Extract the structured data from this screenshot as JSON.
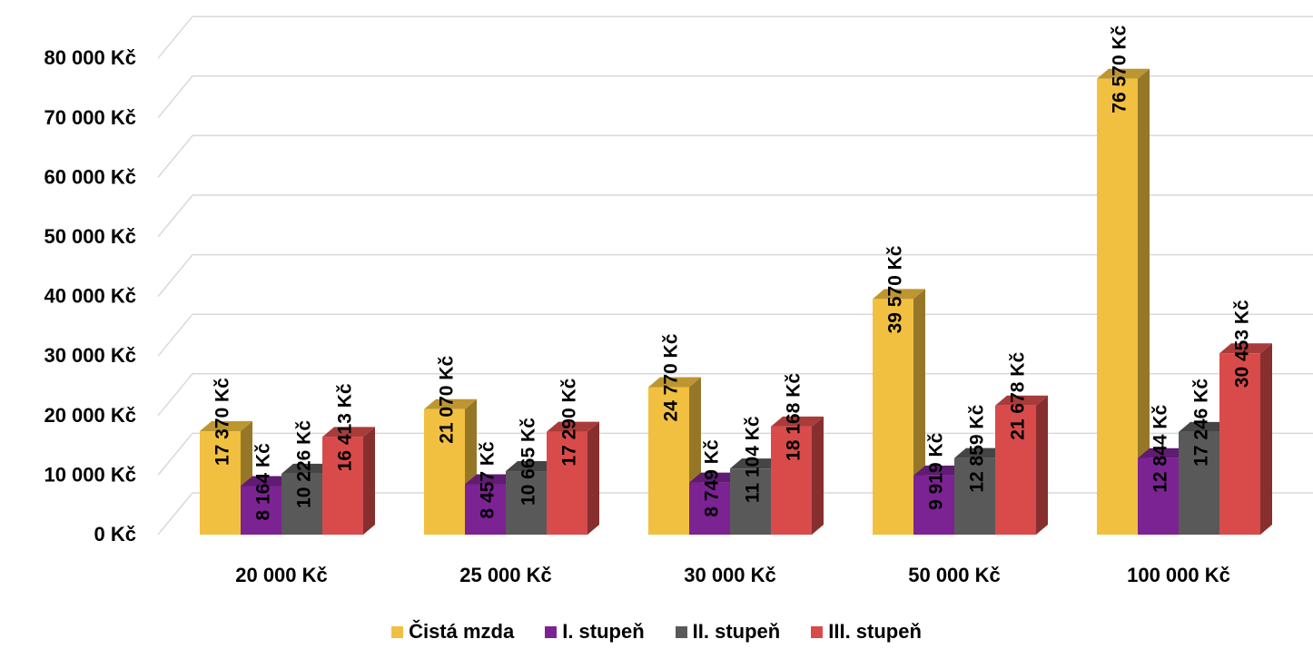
{
  "chart_data": {
    "type": "bar",
    "style": "3d-clustered-column",
    "categories": [
      "20 000 Kč",
      "25 000 Kč",
      "30 000 Kč",
      "50 000 Kč",
      "100 000 Kč"
    ],
    "series": [
      {
        "name": "Čistá mzda",
        "color": "#F2C040",
        "values": [
          17370,
          21070,
          24770,
          39570,
          76570
        ],
        "labels": [
          "17 370 Kč",
          "21 070 Kč",
          "24 770 Kč",
          "39 570 Kč",
          "76 570 Kč"
        ]
      },
      {
        "name": "I. stupeň",
        "color": "#7B2393",
        "values": [
          8164,
          8457,
          8749,
          9919,
          12844
        ],
        "labels": [
          "8 164 Kč",
          "8 457 Kč",
          "8 749 Kč",
          "9 919 Kč",
          "12 844 Kč"
        ]
      },
      {
        "name": "II. stupeň",
        "color": "#595959",
        "values": [
          10226,
          10665,
          11104,
          12859,
          17246
        ],
        "labels": [
          "10 226 Kč",
          "10 665 Kč",
          "11 104 Kč",
          "12 859 Kč",
          "17 246 Kč"
        ]
      },
      {
        "name": "III. stupeň",
        "color": "#D94B4B",
        "values": [
          16413,
          17290,
          18168,
          21678,
          30453
        ],
        "labels": [
          "16 413 Kč",
          "17 290 Kč",
          "18 168 Kč",
          "21 678 Kč",
          "30 453 Kč"
        ]
      }
    ],
    "yticks": [
      0,
      10000,
      20000,
      30000,
      40000,
      50000,
      60000,
      70000,
      80000
    ],
    "ytick_labels": [
      "0 Kč",
      "10 000 Kč",
      "20 000 Kč",
      "30 000 Kč",
      "40 000 Kč",
      "50 000 Kč",
      "60 000 Kč",
      "70 000 Kč",
      "80 000 Kč"
    ],
    "ylim": [
      0,
      80000
    ],
    "grid": true,
    "legend_position": "bottom"
  }
}
